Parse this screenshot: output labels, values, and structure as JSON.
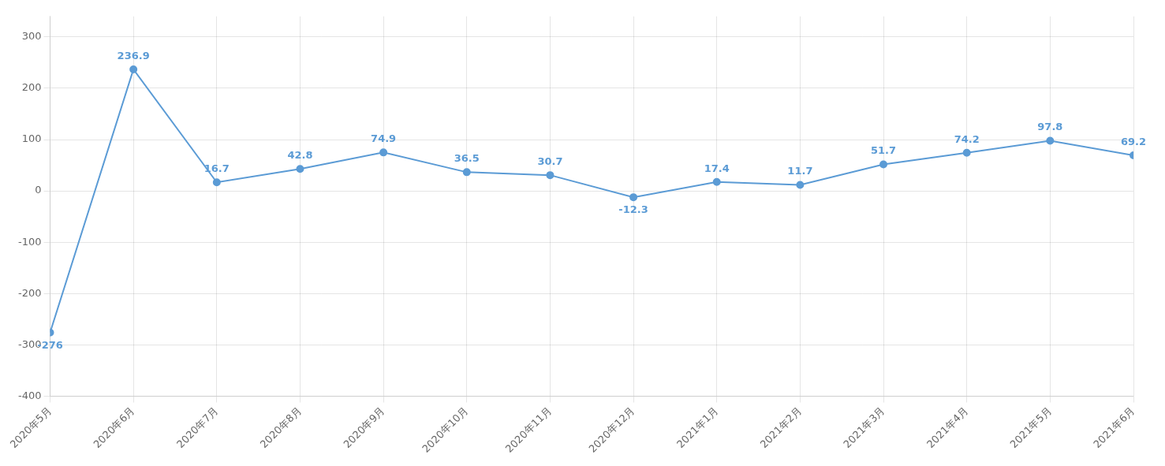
{
  "chart_data": {
    "type": "line",
    "categories": [
      "2020年5月",
      "2020年6月",
      "2020年7月",
      "2020年8月",
      "2020年9月",
      "2020年10月",
      "2020年11月",
      "2020年12月",
      "2021年1月",
      "2021年2月",
      "2021年3月",
      "2021年4月",
      "2021年5月",
      "2021年6月"
    ],
    "values": [
      -276,
      236.9,
      16.7,
      42.8,
      74.9,
      36.5,
      30.7,
      -12.3,
      17.4,
      11.7,
      51.7,
      74.2,
      97.8,
      69.2
    ],
    "color": "#5B9BD5",
    "marker": "circle",
    "ylim": [
      -400,
      340
    ],
    "yticks": [
      -400,
      -300,
      -200,
      -100,
      0,
      100,
      200,
      300
    ],
    "grid": true,
    "data_labels": true
  }
}
